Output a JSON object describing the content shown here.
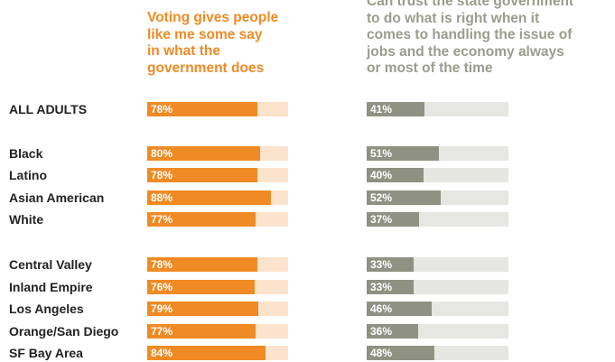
{
  "chart_data": {
    "type": "bar",
    "colors": {
      "left_fill": "#f08a24",
      "left_track": "#fce3cc",
      "right_fill": "#8f9282",
      "right_track": "#e6e6e2"
    },
    "series": [
      {
        "name": "Voting gives people like me some say in what the government does",
        "values": [
          78,
          80,
          78,
          88,
          77,
          78,
          76,
          79,
          77,
          84
        ]
      },
      {
        "name": "Can trust the state government to do what is right when it comes to handling the issue of jobs and the economy always or most of the time",
        "values": [
          41,
          51,
          40,
          52,
          37,
          33,
          33,
          46,
          36,
          48
        ]
      }
    ],
    "series_heading_lines": [
      [
        "Voting gives people",
        "like me some say",
        "in what the",
        "government does"
      ],
      [
        "Can trust the state government",
        "to do what is right when it",
        "comes to handling the issue of",
        "jobs and the economy always",
        "or most of the time"
      ]
    ],
    "categories": [
      "ALL ADULTS",
      "Black",
      "Latino",
      "Asian American",
      "White",
      "Central Valley",
      "Inland Empire",
      "Los Angeles",
      "Orange/San Diego",
      "SF Bay Area"
    ],
    "value_labels": [
      [
        "78%",
        "80%",
        "78%",
        "88%",
        "77%",
        "78%",
        "76%",
        "79%",
        "77%",
        "84%"
      ],
      [
        "41%",
        "51%",
        "40%",
        "52%",
        "37%",
        "33%",
        "33%",
        "46%",
        "36%",
        "48%"
      ]
    ],
    "xlim": [
      0,
      100
    ],
    "legend": "column headings"
  }
}
